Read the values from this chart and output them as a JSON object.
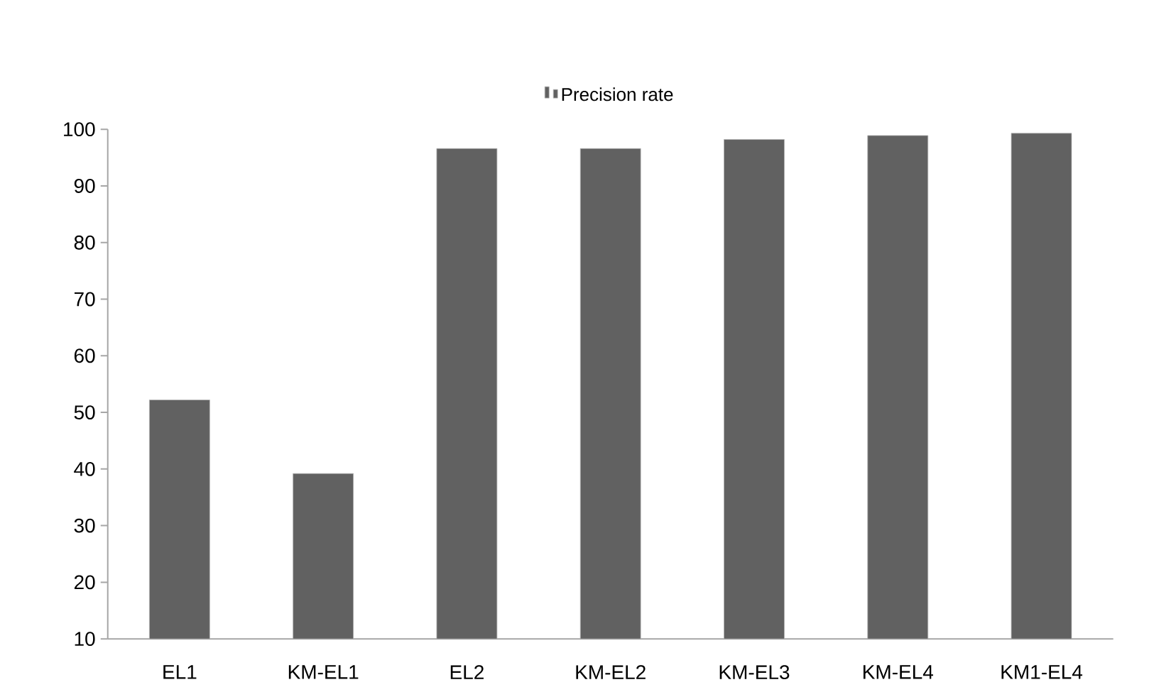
{
  "chart_data": {
    "type": "bar",
    "categories": [
      "EL1",
      "KM-EL1",
      "EL2",
      "KM-EL2",
      "KM-EL3",
      "KM-EL4",
      "KM1-EL4"
    ],
    "series": [
      {
        "name": "Precision rate",
        "color": "#616161",
        "values": [
          52.2,
          39.2,
          96.6,
          96.6,
          98.2,
          98.9,
          99.3
        ]
      }
    ],
    "ylim": [
      10,
      100
    ],
    "yticks": [
      10,
      20,
      30,
      40,
      50,
      60,
      70,
      80,
      90,
      100
    ],
    "legend": "top",
    "grid": false
  }
}
